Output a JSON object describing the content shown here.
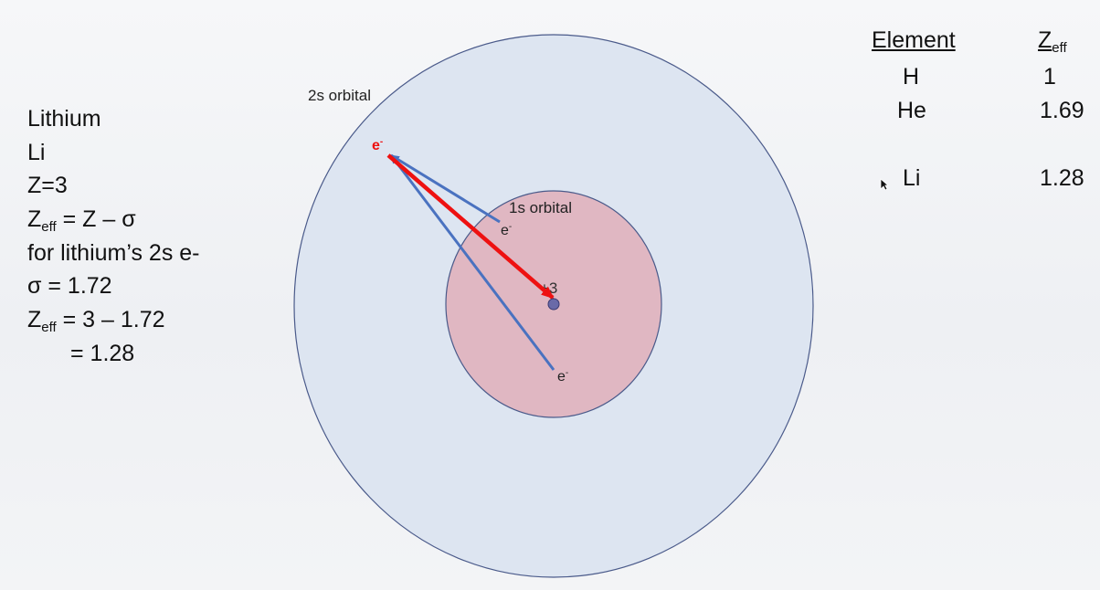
{
  "left_panel": {
    "element_name": "Lithium",
    "symbol": "Li",
    "atomic_number": "Z=3",
    "formula_z": "Z",
    "formula_sub": "eff",
    "formula_rest": " = Z – σ",
    "note": "for lithium’s 2s e-",
    "sigma": "σ = 1.72",
    "calc_z": "Z",
    "calc_sub": "eff",
    "calc_rest": " = 3 – 1.72",
    "result": "= 1.28"
  },
  "diagram": {
    "outer_label": "2s orbital",
    "inner_label": "1s orbital",
    "nucleus_label": "+3",
    "electron_outer": "e",
    "electron_inner_1": "e",
    "electron_inner_2": "e",
    "electron_sup": "-",
    "colors": {
      "outer_orbital": "#dde5f1",
      "inner_orbital": "#e0b7c2",
      "orbital_stroke": "#4a5a8a",
      "shield_arrow": "#4a72c0",
      "net_arrow": "#ee1111",
      "nucleus": "#6a6aa8"
    }
  },
  "table": {
    "col1_header": "Element",
    "col2_header_z": "Z",
    "col2_header_sub": "eff",
    "rows": [
      {
        "element": "H",
        "zeff": "1"
      },
      {
        "element": "He",
        "zeff": "1.69"
      },
      {
        "element": "Li",
        "zeff": "1.28"
      }
    ]
  }
}
